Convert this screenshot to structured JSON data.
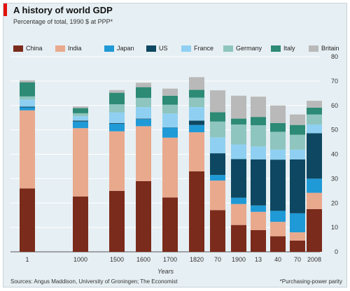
{
  "chart_data": {
    "type": "bar",
    "stacked": true,
    "title": "A history of world GDP",
    "subtitle": "Percentage of total, 1990 $ at PPP*",
    "xlabel": "Years",
    "ylabel": "",
    "ylim": [
      0,
      80
    ],
    "yticks": [
      0,
      10,
      20,
      30,
      40,
      50,
      60,
      70,
      80
    ],
    "grid": true,
    "legend_position": "top",
    "categories": [
      "1",
      "1000",
      "1500",
      "1600",
      "1700",
      "1820",
      "70",
      "1900",
      "13",
      "40",
      "70",
      "2008"
    ],
    "series": [
      {
        "name": "China",
        "color": "#7a2b1b",
        "values": [
          26,
          22.7,
          25,
          29,
          22.3,
          33,
          17.1,
          11,
          8.9,
          6.4,
          4.6,
          17.5
        ]
      },
      {
        "name": "India",
        "color": "#e9a98d",
        "values": [
          32,
          28,
          24.4,
          22.5,
          24.5,
          16,
          12.1,
          8.6,
          7.5,
          5.9,
          3.4,
          6.7
        ]
      },
      {
        "name": "Japan",
        "color": "#1f9ad6",
        "values": [
          1.2,
          2.7,
          3.1,
          2.9,
          4.1,
          3,
          2.3,
          2.6,
          2.6,
          4.5,
          7.8,
          5.8
        ]
      },
      {
        "name": "US",
        "color": "#0e4761",
        "values": [
          0.3,
          0.4,
          0.3,
          0.2,
          0.1,
          1.8,
          8.9,
          15.8,
          18.9,
          21,
          22.1,
          18.6
        ]
      },
      {
        "name": "France",
        "color": "#8fd0f2",
        "values": [
          2.9,
          1.8,
          4.4,
          4.7,
          5.7,
          5.5,
          6.5,
          6,
          5.3,
          4.1,
          4,
          3.6
        ]
      },
      {
        "name": "Germany",
        "color": "#8ec5be",
        "values": [
          1.3,
          1.2,
          3.3,
          3.8,
          3.6,
          3.9,
          6.5,
          8.2,
          8.7,
          7.3,
          6.1,
          4.1
        ]
      },
      {
        "name": "Italy",
        "color": "#2c8a75",
        "values": [
          5.8,
          2.1,
          4.7,
          4.4,
          3.7,
          3.2,
          3.8,
          2.4,
          3.4,
          3.6,
          4,
          2.8
        ]
      },
      {
        "name": "Britain",
        "color": "#b9b9b9",
        "values": [
          0.8,
          0.7,
          1.1,
          1.8,
          2.9,
          5.2,
          9,
          9.4,
          8.3,
          7.2,
          4.3,
          2.8
        ]
      }
    ]
  },
  "source_text": "Sources: Angus Maddison, University of Groningen; The Economist",
  "footnote_text": "*Purchasing-power parity"
}
